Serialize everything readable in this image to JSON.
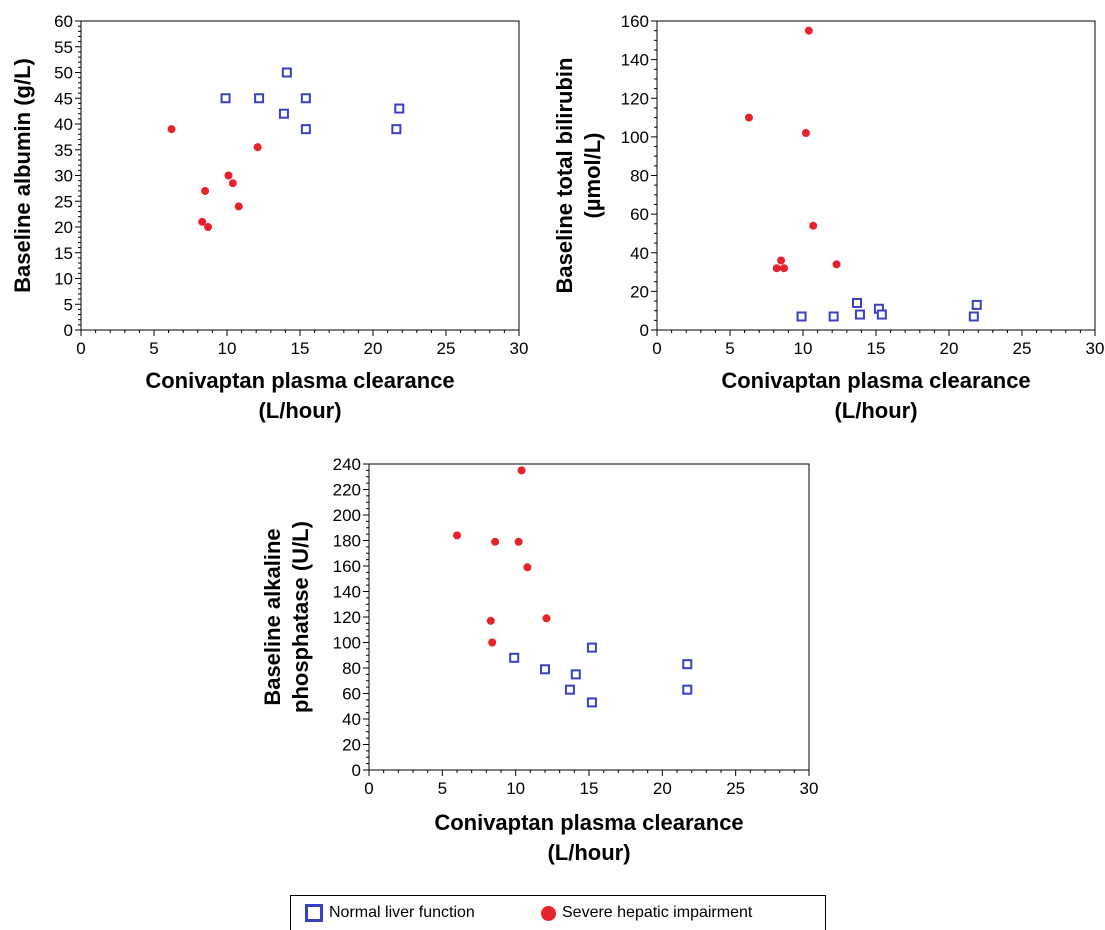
{
  "colors": {
    "normal": "#3b3fc4",
    "severe": "#e8222b",
    "axis": "#000000"
  },
  "legend": {
    "normal_label": "Normal liver function",
    "severe_label": "Severe hepatic impairment"
  },
  "chart_data": [
    {
      "type": "scatter",
      "ylabel_lines": [
        "Baseline albumin (g/L)"
      ],
      "xlabel_lines": [
        "Conivaptan plasma clearance",
        "(L/hour)"
      ],
      "xlim": [
        0,
        30
      ],
      "ylim": [
        0,
        60
      ],
      "xticks": [
        0,
        5,
        10,
        15,
        20,
        25,
        30
      ],
      "yticks": [
        0,
        5,
        10,
        15,
        20,
        25,
        30,
        35,
        40,
        45,
        50,
        55,
        60
      ],
      "series": [
        {
          "key": "normal",
          "points": [
            [
              9.9,
              45
            ],
            [
              12.2,
              45
            ],
            [
              14.1,
              50
            ],
            [
              15.4,
              45
            ],
            [
              13.9,
              42
            ],
            [
              15.4,
              39
            ],
            [
              21.6,
              39
            ],
            [
              21.8,
              43
            ]
          ]
        },
        {
          "key": "severe",
          "points": [
            [
              6.2,
              39
            ],
            [
              8.5,
              27
            ],
            [
              8.3,
              21
            ],
            [
              8.7,
              20
            ],
            [
              10.1,
              30
            ],
            [
              10.4,
              28.5
            ],
            [
              10.8,
              24
            ],
            [
              12.1,
              35.5
            ]
          ]
        }
      ]
    },
    {
      "type": "scatter",
      "ylabel_lines": [
        "Baseline total bilirubin",
        "(µmol/L)"
      ],
      "xlabel_lines": [
        "Conivaptan plasma clearance",
        "(L/hour)"
      ],
      "xlim": [
        0,
        30
      ],
      "ylim": [
        0,
        160
      ],
      "xticks": [
        0,
        5,
        10,
        15,
        20,
        25,
        30
      ],
      "yticks": [
        0,
        20,
        40,
        60,
        80,
        100,
        120,
        140,
        160
      ],
      "series": [
        {
          "key": "normal",
          "points": [
            [
              9.9,
              7
            ],
            [
              12.1,
              7
            ],
            [
              13.7,
              14
            ],
            [
              13.9,
              8
            ],
            [
              15.2,
              11
            ],
            [
              15.4,
              8
            ],
            [
              21.7,
              7
            ],
            [
              21.9,
              13
            ]
          ]
        },
        {
          "key": "severe",
          "points": [
            [
              6.3,
              110
            ],
            [
              8.2,
              32
            ],
            [
              8.5,
              36
            ],
            [
              8.7,
              32
            ],
            [
              10.2,
              102
            ],
            [
              10.4,
              155
            ],
            [
              10.7,
              54
            ],
            [
              12.3,
              34
            ]
          ]
        }
      ]
    },
    {
      "type": "scatter",
      "ylabel_lines": [
        "Baseline alkaline",
        "phosphatase (U/L)"
      ],
      "xlabel_lines": [
        "Conivaptan plasma clearance",
        "(L/hour)"
      ],
      "xlim": [
        0,
        30
      ],
      "ylim": [
        0,
        240
      ],
      "xticks": [
        0,
        5,
        10,
        15,
        20,
        25,
        30
      ],
      "yticks": [
        0,
        20,
        40,
        60,
        80,
        100,
        120,
        140,
        160,
        180,
        200,
        220,
        240
      ],
      "series": [
        {
          "key": "normal",
          "points": [
            [
              9.9,
              88
            ],
            [
              12.0,
              79
            ],
            [
              13.7,
              63
            ],
            [
              14.1,
              75
            ],
            [
              15.2,
              96
            ],
            [
              15.2,
              53
            ],
            [
              21.7,
              83
            ],
            [
              21.7,
              63
            ]
          ]
        },
        {
          "key": "severe",
          "points": [
            [
              6.0,
              184
            ],
            [
              8.3,
              117
            ],
            [
              8.4,
              100
            ],
            [
              8.6,
              179
            ],
            [
              10.2,
              179
            ],
            [
              10.4,
              235
            ],
            [
              10.8,
              159
            ],
            [
              12.1,
              119
            ]
          ]
        }
      ]
    }
  ]
}
